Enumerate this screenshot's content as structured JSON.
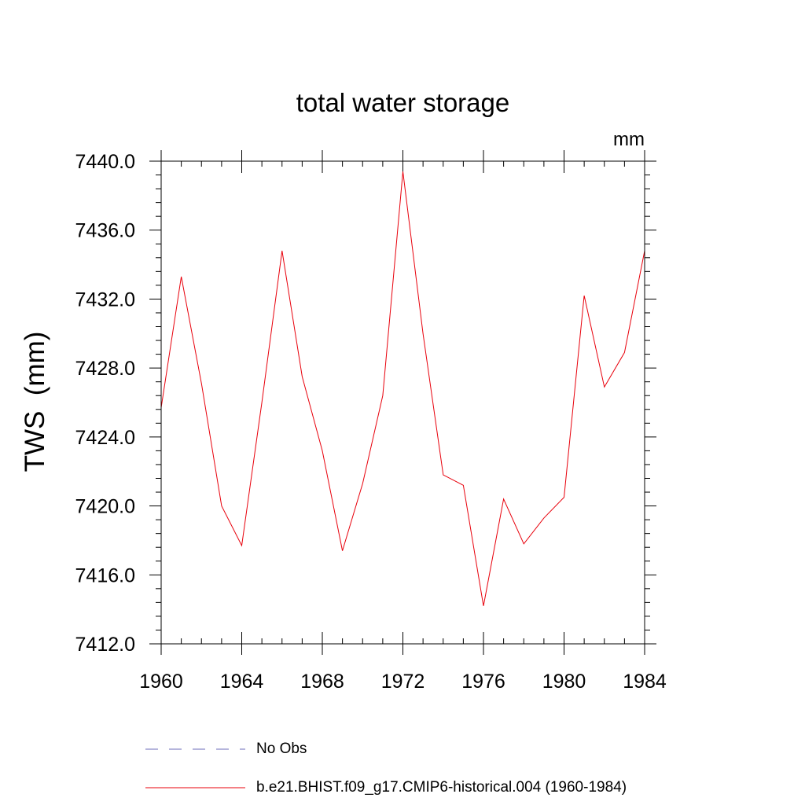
{
  "chart_data": {
    "type": "line",
    "title": "total water storage",
    "units": "mm",
    "ylabel": "TWS  (mm)",
    "xlabel": "",
    "xlim": [
      1960,
      1984
    ],
    "ylim": [
      7412.0,
      7440.0
    ],
    "x_ticks": [
      "1960",
      "1964",
      "1968",
      "1972",
      "1976",
      "1980",
      "1984"
    ],
    "y_ticks": [
      "7412.0",
      "7416.0",
      "7420.0",
      "7424.0",
      "7428.0",
      "7432.0",
      "7436.0",
      "7440.0"
    ],
    "grid": false,
    "legend_position": "bottom",
    "legend": [
      {
        "label": "No Obs",
        "style": "dashed",
        "color": "#6b6bb8"
      },
      {
        "label": "b.e21.BHIST.f09_g17.CMIP6-historical.004 (1960-1984)",
        "style": "solid",
        "color": "#e8000b"
      }
    ],
    "series": [
      {
        "name": "b.e21.BHIST.f09_g17.CMIP6-historical.004 (1960-1984)",
        "color": "#e8000b",
        "x": [
          1960,
          1961,
          1962,
          1963,
          1964,
          1965,
          1966,
          1967,
          1968,
          1969,
          1970,
          1971,
          1972,
          1973,
          1974,
          1975,
          1976,
          1977,
          1978,
          1979,
          1980,
          1981,
          1982,
          1983,
          1984
        ],
        "y": [
          7425.7,
          7433.3,
          7427.1,
          7420.0,
          7417.7,
          7426.0,
          7434.8,
          7427.5,
          7423.2,
          7417.4,
          7421.3,
          7426.4,
          7439.4,
          7430.0,
          7421.8,
          7421.2,
          7414.2,
          7420.4,
          7417.8,
          7419.3,
          7420.5,
          7432.2,
          7426.9,
          7428.9,
          7434.8
        ]
      }
    ]
  }
}
